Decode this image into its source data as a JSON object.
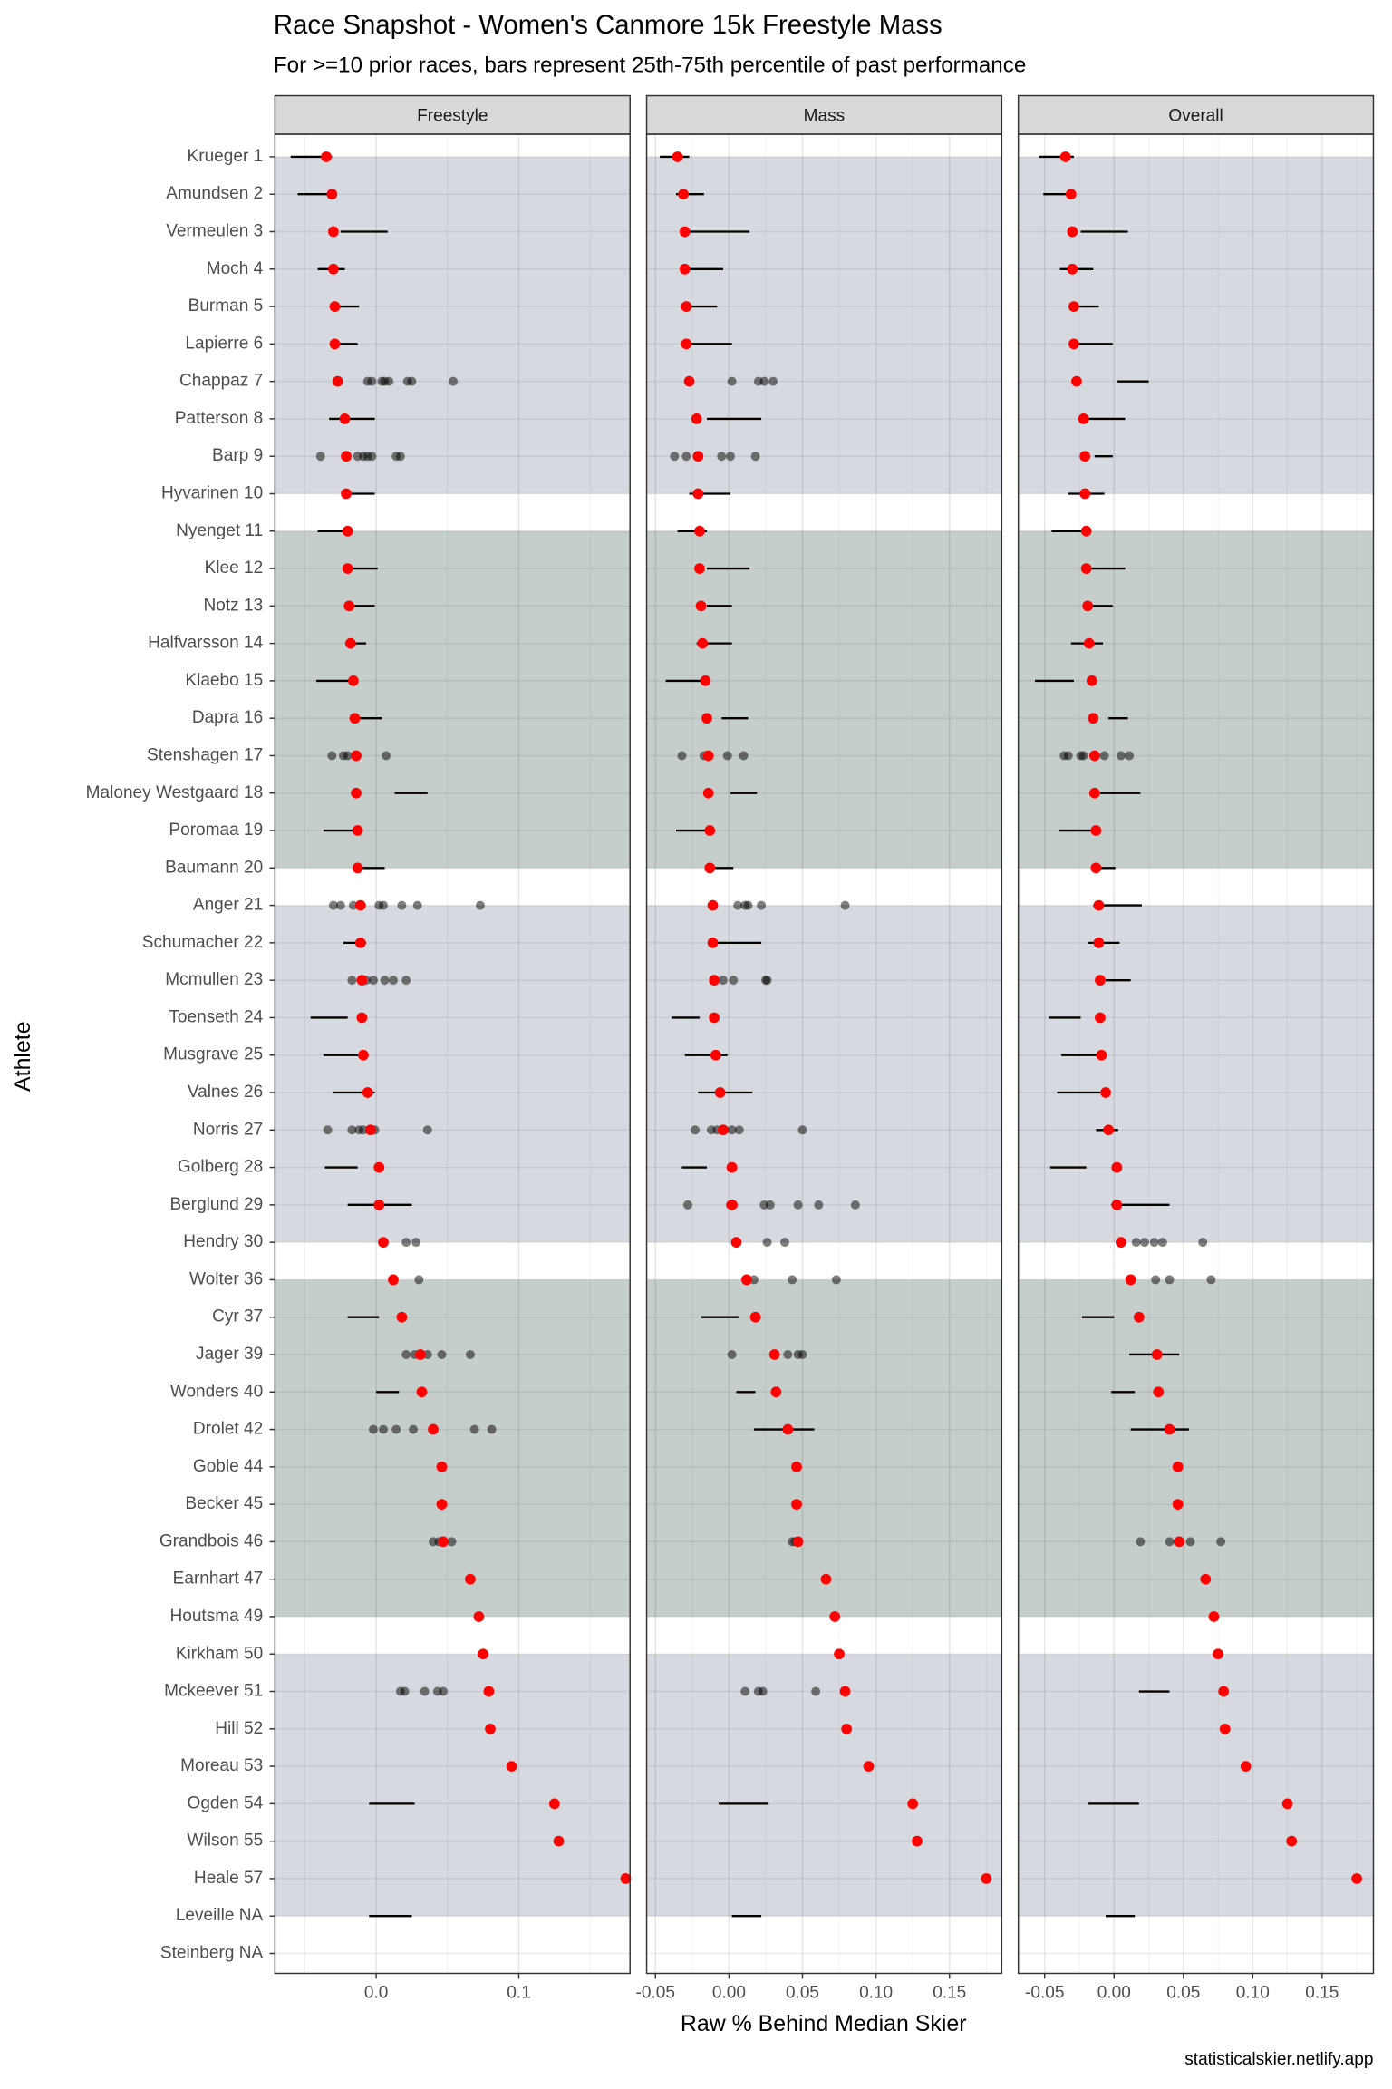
{
  "chart_data": {
    "type": "dot",
    "title": "Race Snapshot -  Women's Canmore 15k Freestyle Mass",
    "subtitle": "For >=10 prior races, bars represent 25th-75th percentile of past performance",
    "xlabel": "Raw % Behind Median Skier",
    "ylabel": "Athlete",
    "source": "statisticalskier.netlify.app",
    "color": "#ff0000",
    "point_color": "#000000",
    "grid": true,
    "categories": [
      "Krueger 1",
      "Amundsen 2",
      "Vermeulen 3",
      "Moch 4",
      "Burman 5",
      "Lapierre 6",
      "Chappaz 7",
      "Patterson 8",
      "Barp 9",
      "Hyvarinen 10",
      "Nyenget 11",
      "Klee 12",
      "Notz 13",
      "Halfvarsson 14",
      "Klaebo 15",
      "Dapra 16",
      "Stenshagen 17",
      "Maloney Westgaard 18",
      "Poromaa 19",
      "Baumann 20",
      "Anger 21",
      "Schumacher 22",
      "Mcmullen 23",
      "Toenseth 24",
      "Musgrave 25",
      "Valnes 26",
      "Norris 27",
      "Golberg 28",
      "Berglund 29",
      "Hendry 30",
      "Wolter 36",
      "Cyr 37",
      "Jager 39",
      "Wonders 40",
      "Drolet 42",
      "Goble 44",
      "Becker 45",
      "Grandbois 46",
      "Earnhart 47",
      "Houtsma 49",
      "Kirkham 50",
      "Mckeever 51",
      "Hill 52",
      "Moreau 53",
      "Ogden 54",
      "Wilson 55",
      "Heale 57",
      "Leveille NA",
      "Steinberg NA"
    ],
    "values": [
      -0.035,
      -0.031,
      -0.03,
      -0.03,
      -0.029,
      -0.029,
      -0.027,
      -0.022,
      -0.021,
      -0.021,
      -0.02,
      -0.02,
      -0.019,
      -0.018,
      -0.016,
      -0.015,
      -0.014,
      -0.014,
      -0.013,
      -0.013,
      -0.011,
      -0.011,
      -0.01,
      -0.01,
      -0.009,
      -0.006,
      -0.004,
      0.002,
      0.002,
      0.005,
      0.012,
      0.018,
      0.031,
      0.032,
      0.04,
      0.046,
      0.046,
      0.047,
      0.066,
      0.072,
      0.075,
      0.079,
      0.08,
      0.095,
      0.125,
      0.128,
      0.175,
      null,
      null
    ],
    "facets": [
      {
        "name": "Freestyle",
        "xlim": [
          -0.071,
          0.178
        ],
        "xticks": [
          {
            "value": 0,
            "label": "0.0"
          },
          0.1
        ],
        "ranges": [
          [
            -0.06,
            -0.031
          ],
          [
            -0.055,
            -0.032
          ],
          [
            -0.025,
            0.008
          ],
          [
            -0.041,
            -0.022
          ],
          [
            -0.031,
            -0.012
          ],
          [
            -0.031,
            -0.013
          ],
          null,
          [
            -0.033,
            -0.001
          ],
          null,
          [
            -0.021,
            -0.001
          ],
          [
            -0.041,
            -0.019
          ],
          [
            -0.019,
            0.001
          ],
          [
            -0.019,
            -0.001
          ],
          [
            -0.019,
            -0.007
          ],
          [
            -0.042,
            -0.019
          ],
          [
            -0.016,
            0.004
          ],
          null,
          [
            0.013,
            0.036
          ],
          [
            -0.037,
            -0.015
          ],
          [
            -0.012,
            0.006
          ],
          null,
          [
            -0.023,
            -0.007
          ],
          null,
          [
            -0.046,
            -0.02
          ],
          [
            -0.037,
            -0.012
          ],
          [
            -0.03,
            -0.001
          ],
          null,
          [
            -0.036,
            -0.013
          ],
          [
            -0.02,
            0.025
          ],
          null,
          null,
          [
            -0.02,
            0.002
          ],
          null,
          [
            0.0,
            0.016
          ],
          null,
          null,
          null,
          null,
          null,
          null,
          null,
          null,
          null,
          null,
          [
            -0.005,
            0.027
          ],
          null,
          null,
          [
            -0.005,
            0.025
          ],
          null
        ],
        "points": [
          [],
          [],
          [],
          [],
          [],
          [],
          [
            -0.006,
            -0.003,
            0.004,
            0.006,
            0.009,
            0.022,
            0.025,
            0.054
          ],
          [],
          [
            -0.039,
            -0.013,
            -0.009,
            -0.006,
            -0.003,
            0.014,
            0.017
          ],
          [],
          [],
          [],
          [],
          [],
          [],
          [],
          [
            -0.031,
            -0.023,
            -0.02,
            0.007
          ],
          [],
          [],
          [],
          [
            -0.03,
            -0.025,
            -0.016,
            0.002,
            0.005,
            0.018,
            0.029,
            0.073
          ],
          [],
          [
            -0.017,
            -0.007,
            -0.002,
            0.006,
            0.012,
            0.021
          ],
          [],
          [],
          [],
          [
            -0.034,
            -0.017,
            -0.012,
            -0.009,
            -0.004,
            -0.001,
            0.036
          ],
          [],
          [],
          [
            0.021,
            0.028
          ],
          [
            0.012,
            0.03
          ],
          [],
          [
            0.021,
            0.027,
            0.036,
            0.046,
            0.066
          ],
          [],
          [
            -0.002,
            0.005,
            0.014,
            0.026,
            0.069,
            0.081
          ],
          [],
          [],
          [
            0.04,
            0.044,
            0.053
          ],
          [],
          [],
          [],
          [
            0.017,
            0.02,
            0.034,
            0.043,
            0.047
          ],
          [],
          [],
          [],
          [],
          [],
          [],
          []
        ]
      },
      {
        "name": "Mass",
        "xlim": [
          -0.056,
          0.1855
        ],
        "xticks": [
          -0.05,
          {
            "value": 0,
            "label": "0.00"
          },
          0.05,
          {
            "value": 0.1,
            "label": "0.10"
          },
          0.15
        ],
        "ranges": [
          [
            -0.047,
            -0.027
          ],
          [
            -0.036,
            -0.017
          ],
          [
            -0.028,
            0.014
          ],
          [
            -0.027,
            -0.004
          ],
          [
            -0.027,
            -0.008
          ],
          [
            -0.027,
            0.002
          ],
          null,
          [
            -0.015,
            0.022
          ],
          null,
          [
            -0.027,
            0.001
          ],
          [
            -0.035,
            -0.015
          ],
          [
            -0.015,
            0.014
          ],
          [
            -0.015,
            0.002
          ],
          [
            -0.022,
            0.002
          ],
          [
            -0.043,
            -0.016
          ],
          [
            -0.005,
            0.013
          ],
          null,
          [
            0.001,
            0.019
          ],
          [
            -0.036,
            -0.011
          ],
          [
            -0.015,
            0.003
          ],
          null,
          [
            -0.011,
            0.022
          ],
          null,
          [
            -0.039,
            -0.02
          ],
          [
            -0.03,
            -0.001
          ],
          [
            -0.021,
            0.016
          ],
          null,
          [
            -0.032,
            -0.015
          ],
          null,
          null,
          null,
          [
            -0.019,
            0.007
          ],
          null,
          [
            0.005,
            0.018
          ],
          [
            0.017,
            0.058
          ],
          null,
          null,
          null,
          null,
          null,
          null,
          null,
          null,
          null,
          [
            -0.007,
            0.027
          ],
          null,
          null,
          [
            0.002,
            0.022
          ],
          null
        ],
        "points": [
          [],
          [],
          [],
          [],
          [],
          [],
          [
            0.002,
            0.02,
            0.024,
            0.03
          ],
          [],
          [
            -0.037,
            -0.029,
            -0.005,
            0.001,
            0.018
          ],
          [],
          [],
          [],
          [],
          [],
          [],
          [],
          [
            -0.032,
            -0.017,
            -0.001,
            0.01
          ],
          [],
          [],
          [],
          [
            0.006,
            0.011,
            0.013,
            0.022,
            0.079
          ],
          [],
          [
            -0.004,
            0.003,
            0.025,
            0.026
          ],
          [],
          [],
          [],
          [
            -0.023,
            -0.012,
            -0.008,
            -0.003,
            0.002,
            0.007,
            0.05
          ],
          [],
          [
            -0.028,
            0.001,
            0.003,
            0.024,
            0.028,
            0.047,
            0.061,
            0.086
          ],
          [
            0.026,
            0.038
          ],
          [
            0.017,
            0.043,
            0.073
          ],
          [],
          [
            0.002,
            0.04,
            0.047,
            0.05
          ],
          [],
          [],
          [],
          [],
          [
            0.043,
            0.045
          ],
          [],
          [],
          [],
          [
            0.011,
            0.02,
            0.023,
            0.059
          ],
          [],
          [],
          [],
          [],
          [],
          [],
          []
        ]
      },
      {
        "name": "Overall",
        "xlim": [
          -0.069,
          0.187
        ],
        "xticks": [
          -0.05,
          {
            "value": 0,
            "label": "0.00"
          },
          0.05,
          {
            "value": 0.1,
            "label": "0.10"
          },
          0.15
        ],
        "ranges": [
          [
            -0.054,
            -0.029
          ],
          [
            -0.051,
            -0.031
          ],
          [
            -0.024,
            0.01
          ],
          [
            -0.039,
            -0.015
          ],
          [
            -0.028,
            -0.011
          ],
          [
            -0.027,
            -0.001
          ],
          [
            0.002,
            0.025
          ],
          [
            -0.026,
            0.008
          ],
          [
            -0.014,
            -0.001
          ],
          [
            -0.033,
            -0.007
          ],
          [
            -0.045,
            -0.023
          ],
          [
            -0.017,
            0.008
          ],
          [
            -0.018,
            -0.001
          ],
          [
            -0.031,
            -0.008
          ],
          [
            -0.057,
            -0.029
          ],
          [
            -0.004,
            0.01
          ],
          null,
          [
            -0.01,
            0.019
          ],
          [
            -0.04,
            -0.015
          ],
          [
            -0.016,
            0.001
          ],
          [
            -0.015,
            0.02
          ],
          [
            -0.019,
            0.004
          ],
          [
            -0.006,
            0.012
          ],
          [
            -0.047,
            -0.024
          ],
          [
            -0.038,
            -0.009
          ],
          [
            -0.041,
            -0.006
          ],
          [
            -0.013,
            0.003
          ],
          [
            -0.046,
            -0.02
          ],
          [
            -0.002,
            0.04
          ],
          null,
          null,
          [
            -0.023,
            0.0
          ],
          [
            0.011,
            0.047
          ],
          [
            -0.002,
            0.015
          ],
          [
            0.012,
            0.054
          ],
          null,
          null,
          null,
          null,
          null,
          null,
          [
            0.018,
            0.04
          ],
          null,
          null,
          [
            -0.019,
            0.018
          ],
          null,
          null,
          [
            -0.006,
            0.015
          ],
          null
        ],
        "points": [
          [],
          [],
          [],
          [],
          [],
          [],
          [],
          [],
          [],
          [],
          [],
          [],
          [],
          [],
          [],
          [],
          [
            -0.036,
            -0.033,
            -0.024,
            -0.022,
            -0.007,
            0.005,
            0.011
          ],
          [],
          [],
          [],
          [],
          [],
          [],
          [],
          [],
          [],
          [],
          [],
          [],
          [
            0.016,
            0.022,
            0.029,
            0.035,
            0.064
          ],
          [
            0.012,
            0.03,
            0.04,
            0.07
          ],
          [],
          [],
          [],
          [],
          [],
          [],
          [
            0.019,
            0.04,
            0.046,
            0.055,
            0.077
          ],
          [],
          [],
          [],
          [],
          [],
          [],
          [],
          [],
          [],
          [],
          []
        ]
      }
    ]
  }
}
